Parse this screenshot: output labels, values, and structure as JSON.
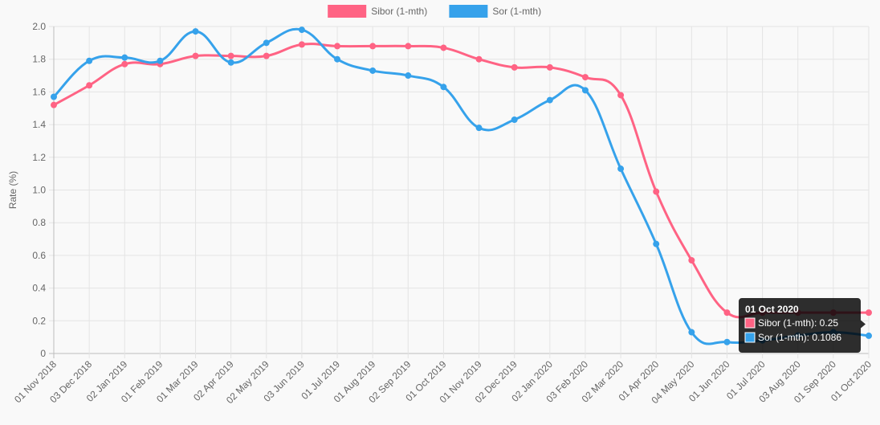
{
  "chart_data": {
    "type": "line",
    "title": "",
    "xlabel": "",
    "ylabel": "Rate (%)",
    "ylim": [
      0,
      2.0
    ],
    "yticks": [
      "0",
      "0.2",
      "0.4",
      "0.6",
      "0.8",
      "1.0",
      "1.2",
      "1.4",
      "1.6",
      "1.8",
      "2.0"
    ],
    "grid": true,
    "legend_position": "top-center",
    "categories": [
      "01 Nov 2018",
      "03 Dec 2018",
      "02 Jan 2019",
      "01 Feb 2019",
      "01 Mar 2019",
      "02 Apr 2019",
      "02 May 2019",
      "03 Jun 2019",
      "01 Jul 2019",
      "01 Aug 2019",
      "02 Sep 2019",
      "01 Oct 2019",
      "01 Nov 2019",
      "02 Dec 2019",
      "02 Jan 2020",
      "03 Feb 2020",
      "02 Mar 2020",
      "01 Apr 2020",
      "04 May 2020",
      "01 Jun 2020",
      "01 Jul 2020",
      "03 Aug 2020",
      "01 Sep 2020",
      "01 Oct 2020"
    ],
    "series": [
      {
        "name": "Sibor (1-mth)",
        "color": "#ff6384",
        "values": [
          1.52,
          1.64,
          1.77,
          1.77,
          1.82,
          1.82,
          1.82,
          1.89,
          1.88,
          1.88,
          1.88,
          1.87,
          1.8,
          1.75,
          1.75,
          1.69,
          1.58,
          0.99,
          0.57,
          0.25,
          0.25,
          0.25,
          0.25,
          0.25
        ]
      },
      {
        "name": "Sor (1-mth)",
        "color": "#36a2eb",
        "values": [
          1.57,
          1.79,
          1.81,
          1.79,
          1.97,
          1.78,
          1.9,
          1.98,
          1.8,
          1.73,
          1.7,
          1.63,
          1.38,
          1.43,
          1.55,
          1.61,
          1.13,
          0.67,
          0.13,
          0.07,
          0.08,
          0.11,
          0.13,
          0.1086
        ]
      }
    ],
    "tooltip": {
      "title": "01 Oct 2020",
      "lines": [
        "Sibor (1-mth): 0.25",
        "Sor (1-mth): 0.1086"
      ]
    }
  }
}
